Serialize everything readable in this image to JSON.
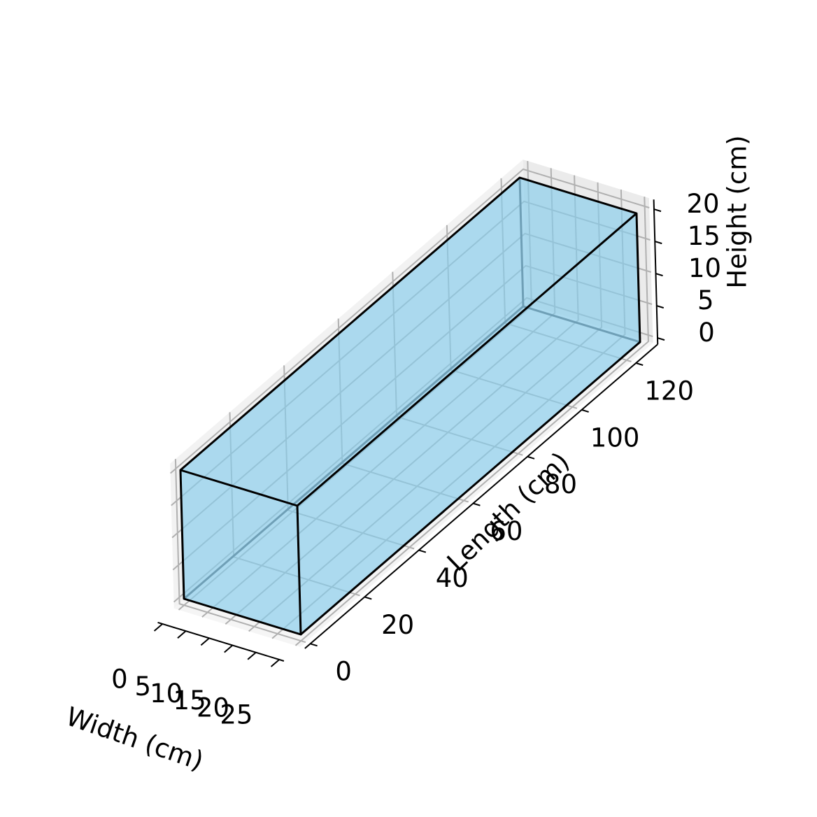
{
  "chart_data": {
    "type": "3d-box",
    "title": "",
    "box": {
      "width": 25,
      "length": 125,
      "height": 20
    },
    "face_color": "#87ceeb",
    "edge_color": "#000000",
    "axes": {
      "x": {
        "label": "Width (cm)",
        "ticks": [
          0,
          5,
          10,
          15,
          20,
          25
        ],
        "range": [
          0,
          25
        ]
      },
      "y": {
        "label": "Length (cm)",
        "ticks": [
          0,
          20,
          40,
          60,
          80,
          100,
          120
        ],
        "range": [
          0,
          125
        ]
      },
      "z": {
        "label": "Height (cm)",
        "ticks": [
          0,
          5,
          10,
          15,
          20
        ],
        "range": [
          0,
          20
        ]
      }
    },
    "grid": true,
    "pane_color": "#f2f2f2"
  }
}
